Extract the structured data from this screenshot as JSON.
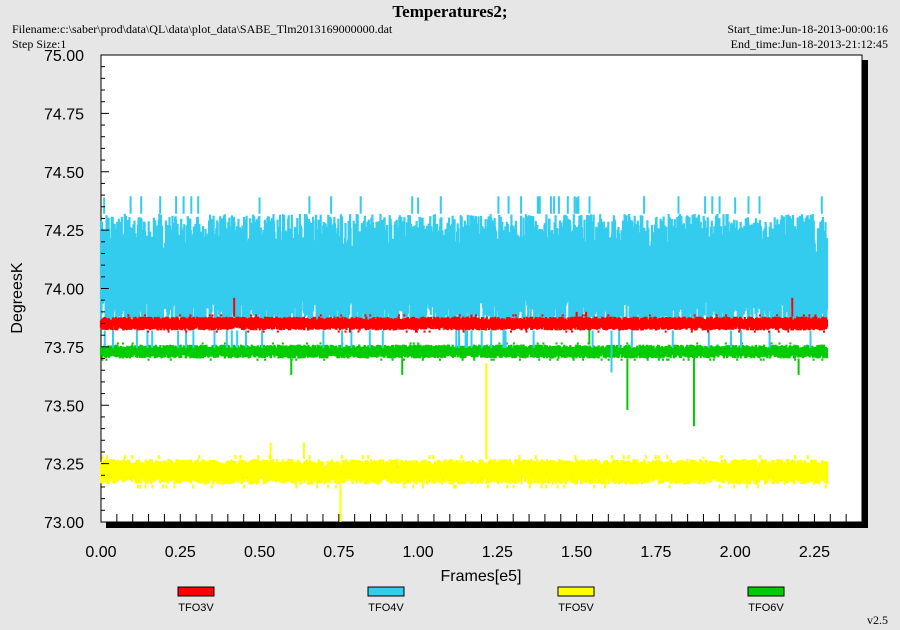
{
  "header": {
    "title": "Temperatures2;",
    "filename": "Filename:c:\\saber\\prod\\data\\QL\\data\\plot_data\\SABE_Tlm2013169000000.dat",
    "step_size": "Step Size:1",
    "start_time": "Start_time:Jun-18-2013-00:00:16",
    "end_time": "End_time:Jun-18-2013-21:12:45"
  },
  "footer": {
    "version": "v2.5"
  },
  "chart_data": {
    "type": "line",
    "title": "Temperatures2;",
    "xlabel": "Frames[e5]",
    "ylabel": "DegreesK",
    "xlim": [
      0.0,
      2.4
    ],
    "ylim": [
      73.0,
      75.0
    ],
    "x_ticks": [
      "0.00",
      "0.25",
      "0.50",
      "0.75",
      "1.00",
      "1.25",
      "1.50",
      "1.75",
      "2.00",
      "2.25"
    ],
    "y_ticks": [
      "73.00",
      "73.25",
      "73.50",
      "73.75",
      "74.00",
      "74.25",
      "74.50",
      "74.75",
      "75.00"
    ],
    "legend_position": "bottom",
    "x_end": 2.29,
    "series": [
      {
        "name": "TFO3V",
        "color": "#ff0000",
        "typical_range": [
          73.82,
          73.88
        ],
        "spikes": [
          [
            0.42,
            73.96
          ],
          [
            1.5,
            73.9
          ],
          [
            1.53,
            73.9
          ],
          [
            2.18,
            73.96
          ],
          [
            0.28,
            73.88
          ]
        ]
      },
      {
        "name": "TFO4V",
        "color": "#33ccee",
        "typical_range": [
          73.82,
          74.32
        ],
        "spikes": [
          [
            0.01,
            74.39
          ],
          [
            0.5,
            74.39
          ],
          [
            1.0,
            74.39
          ],
          [
            1.5,
            74.39
          ],
          [
            2.0,
            74.39
          ],
          [
            1.61,
            73.64
          ]
        ]
      },
      {
        "name": "TFO5V",
        "color": "#ffff00",
        "typical_range": [
          73.16,
          73.27
        ],
        "spikes": [
          [
            0.535,
            73.34
          ],
          [
            0.64,
            73.34
          ],
          [
            1.215,
            73.68
          ],
          [
            0.755,
            73.0
          ],
          [
            1.9,
            73.28
          ]
        ]
      },
      {
        "name": "TFO6V",
        "color": "#00cc00",
        "typical_range": [
          73.7,
          73.76
        ],
        "spikes": [
          [
            1.54,
            73.97
          ],
          [
            1.66,
            73.48
          ],
          [
            1.87,
            73.41
          ],
          [
            0.6,
            73.63
          ],
          [
            0.95,
            73.63
          ],
          [
            2.2,
            73.63
          ]
        ]
      }
    ]
  }
}
